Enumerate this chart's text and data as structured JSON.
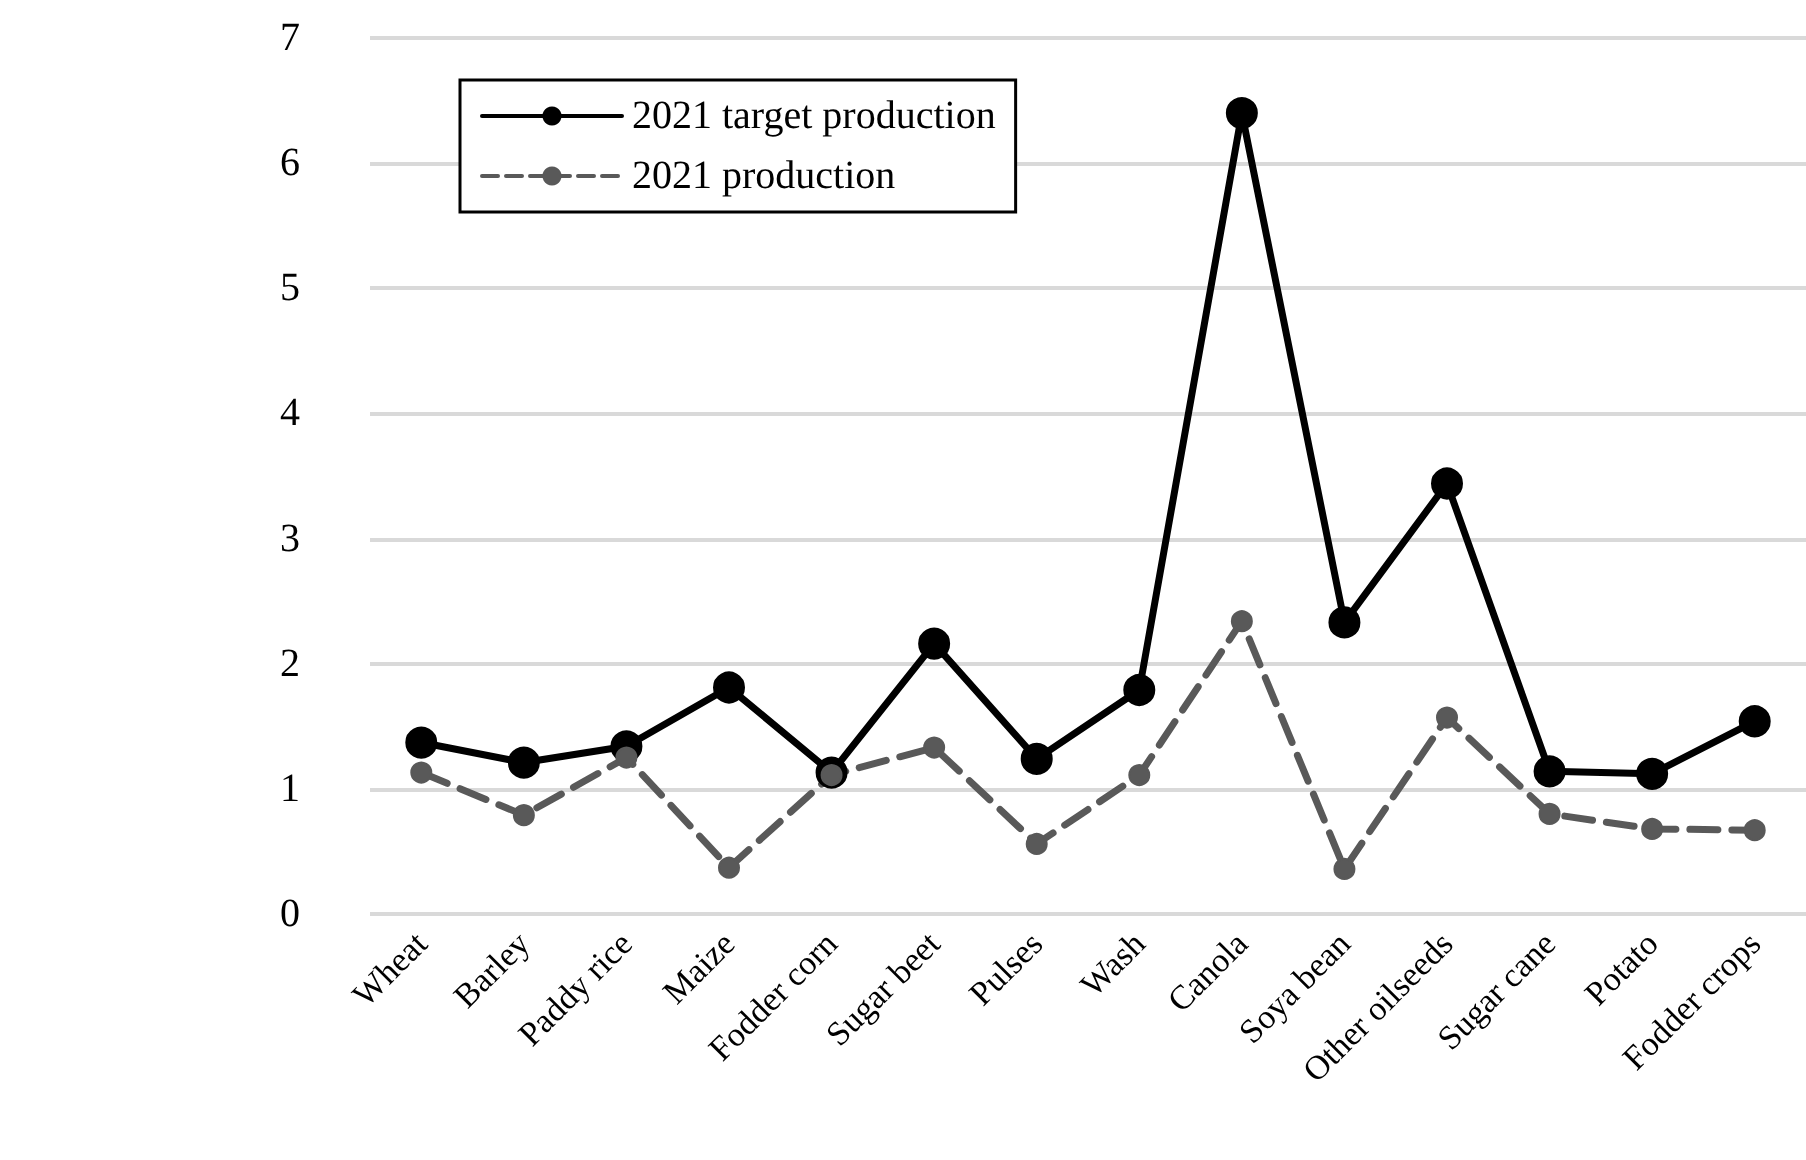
{
  "chart_data": {
    "type": "line",
    "categories": [
      "Wheat",
      "Barley",
      "Paddy rice",
      "Maize",
      "Fodder corn",
      "Sugar beet",
      "Pulses",
      "Wash",
      "Canola",
      "Soya bean",
      "Other oilseeds",
      "Sugar cane",
      "Potato",
      "Fodder crops"
    ],
    "series": [
      {
        "name": "2021 target production",
        "color": "#000000",
        "line_style": "solid",
        "marker": "circle",
        "values": [
          1.37,
          1.21,
          1.34,
          1.81,
          1.13,
          2.16,
          1.24,
          1.79,
          6.4,
          2.33,
          3.44,
          1.14,
          1.12,
          1.54
        ]
      },
      {
        "name": "2021 production",
        "color": "#595959",
        "line_style": "dashed",
        "marker": "circle",
        "values": [
          1.13,
          0.79,
          1.25,
          0.37,
          1.11,
          1.33,
          0.56,
          1.11,
          2.34,
          0.36,
          1.57,
          0.8,
          0.68,
          0.67
        ]
      }
    ],
    "ylim": [
      0,
      7
    ],
    "yticks": [
      0,
      1,
      2,
      3,
      4,
      5,
      6,
      7
    ],
    "grid": "y",
    "legend": "top left"
  }
}
